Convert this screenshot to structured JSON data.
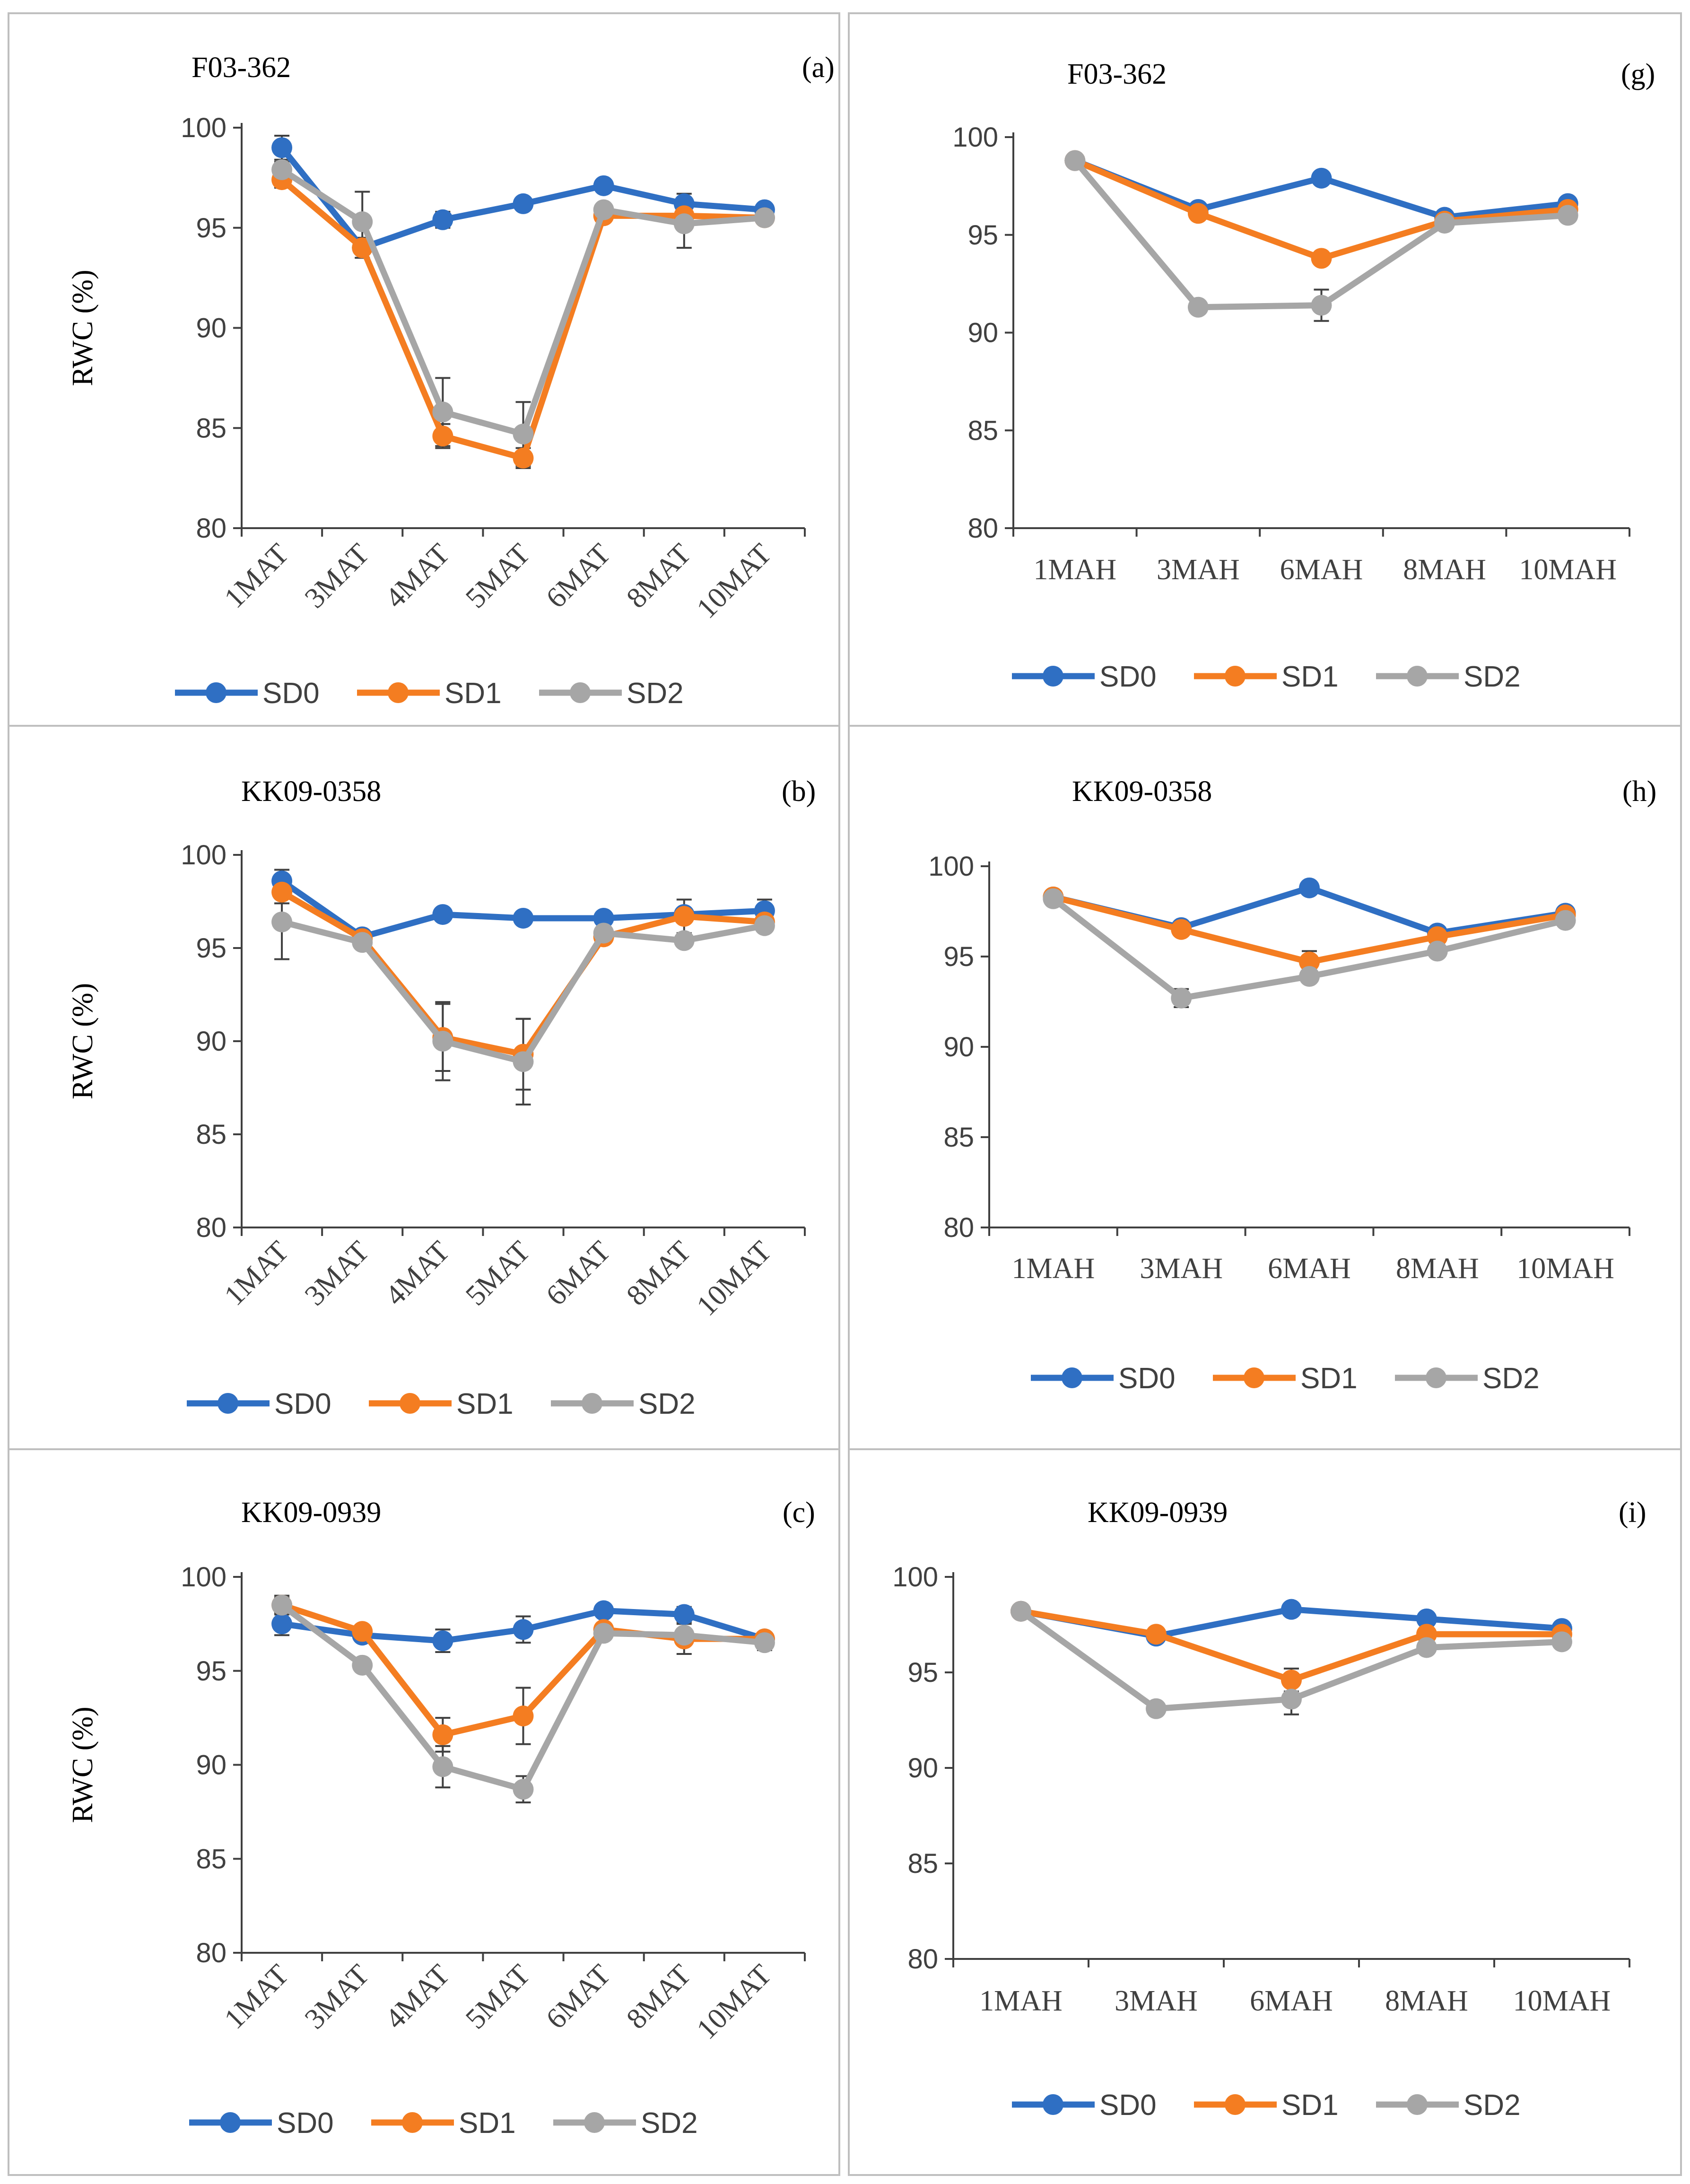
{
  "figure": {
    "ylabel": "RWC (%)",
    "series_colors": {
      "SD0": "#2F6FC3",
      "SD1": "#F47D21",
      "SD2": "#A6A6A6"
    },
    "error_bar_color": "#404040",
    "axis_color": "#404040"
  },
  "chart_data": [
    {
      "type": "line",
      "panel": "a",
      "label": "(a)",
      "title": "F03-362",
      "ylabel": "RWC (%)",
      "ylim": [
        80,
        100
      ],
      "yticks": [
        80,
        85,
        90,
        95,
        100
      ],
      "x_rotated": true,
      "categories": [
        "1MAT",
        "3MAT",
        "4MAT",
        "5MAT",
        "6MAT",
        "8MAT",
        "10MAT"
      ],
      "series": [
        {
          "name": "SD0",
          "values": [
            99.0,
            94.0,
            95.4,
            96.2,
            97.1,
            96.2,
            95.9
          ],
          "errors": [
            0.6,
            0.3,
            0.4,
            0.2,
            0.3,
            0.5,
            0.3
          ]
        },
        {
          "name": "SD1",
          "values": [
            97.4,
            94.0,
            84.6,
            83.5,
            95.6,
            95.6,
            95.5
          ],
          "errors": [
            0.4,
            0.5,
            0.6,
            0.5,
            0.3,
            0.5,
            0.3
          ]
        },
        {
          "name": "SD2",
          "values": [
            97.9,
            95.3,
            85.8,
            84.7,
            95.9,
            95.2,
            95.5
          ],
          "errors": [
            0.4,
            1.5,
            1.7,
            1.6,
            0.3,
            1.2,
            0.3
          ]
        }
      ],
      "legend": [
        "SD0",
        "SD1",
        "SD2"
      ]
    },
    {
      "type": "line",
      "panel": "g",
      "label": "(g)",
      "title": "F03-362",
      "ylabel": "",
      "ylim": [
        80,
        100
      ],
      "yticks": [
        80,
        85,
        90,
        95,
        100
      ],
      "x_rotated": false,
      "categories": [
        "1MAH",
        "3MAH",
        "6MAH",
        "8MAH",
        "10MAH"
      ],
      "series": [
        {
          "name": "SD0",
          "values": [
            98.8,
            96.3,
            97.9,
            95.9,
            96.6
          ],
          "errors": [
            0.2,
            0.2,
            0.2,
            0.2,
            0.3
          ]
        },
        {
          "name": "SD1",
          "values": [
            98.8,
            96.1,
            93.8,
            95.7,
            96.3
          ],
          "errors": [
            0.2,
            0.2,
            0.2,
            0.2,
            0.2
          ]
        },
        {
          "name": "SD2",
          "values": [
            98.8,
            91.3,
            91.4,
            95.6,
            96.0
          ],
          "errors": [
            0.2,
            0.3,
            0.8,
            0.2,
            0.3
          ]
        }
      ],
      "legend": [
        "SD0",
        "SD1",
        "SD2"
      ]
    },
    {
      "type": "line",
      "panel": "b",
      "label": "(b)",
      "title": "KK09-0358",
      "ylabel": "RWC (%)",
      "ylim": [
        80,
        100
      ],
      "yticks": [
        80,
        85,
        90,
        95,
        100
      ],
      "x_rotated": true,
      "categories": [
        "1MAT",
        "3MAT",
        "4MAT",
        "5MAT",
        "6MAT",
        "8MAT",
        "10MAT"
      ],
      "series": [
        {
          "name": "SD0",
          "values": [
            98.6,
            95.6,
            96.8,
            96.6,
            96.6,
            96.8,
            97.0
          ],
          "errors": [
            0.6,
            0.3,
            0.2,
            0.3,
            0.2,
            0.2,
            0.6
          ]
        },
        {
          "name": "SD1",
          "values": [
            98.0,
            95.5,
            90.2,
            89.3,
            95.6,
            96.7,
            96.4
          ],
          "errors": [
            0.6,
            0.3,
            1.8,
            1.9,
            0.3,
            0.9,
            0.4
          ]
        },
        {
          "name": "SD2",
          "values": [
            96.4,
            95.3,
            90.0,
            88.9,
            95.8,
            95.4,
            96.2
          ],
          "errors": [
            2.0,
            0.3,
            2.1,
            2.3,
            0.3,
            0.3,
            0.3
          ]
        }
      ],
      "legend": [
        "SD0",
        "SD1",
        "SD2"
      ]
    },
    {
      "type": "line",
      "panel": "h",
      "label": "(h)",
      "title": "KK09-0358",
      "ylabel": "",
      "ylim": [
        80,
        100
      ],
      "yticks": [
        80,
        85,
        90,
        95,
        100
      ],
      "x_rotated": false,
      "categories": [
        "1MAH",
        "3MAH",
        "6MAH",
        "8MAH",
        "10MAH"
      ],
      "series": [
        {
          "name": "SD0",
          "values": [
            98.3,
            96.6,
            98.8,
            96.3,
            97.4
          ],
          "errors": [
            0.2,
            0.2,
            0.2,
            0.2,
            0.2
          ]
        },
        {
          "name": "SD1",
          "values": [
            98.3,
            96.5,
            94.7,
            96.1,
            97.3
          ],
          "errors": [
            0.2,
            0.2,
            0.6,
            0.2,
            0.2
          ]
        },
        {
          "name": "SD2",
          "values": [
            98.2,
            92.7,
            93.9,
            95.3,
            97.0
          ],
          "errors": [
            0.2,
            0.5,
            0.3,
            0.3,
            0.3
          ]
        }
      ],
      "legend": [
        "SD0",
        "SD1",
        "SD2"
      ]
    },
    {
      "type": "line",
      "panel": "c",
      "label": "(c)",
      "title": "KK09-0939",
      "ylabel": "RWC (%)",
      "ylim": [
        80,
        100
      ],
      "yticks": [
        80,
        85,
        90,
        95,
        100
      ],
      "x_rotated": true,
      "categories": [
        "1MAT",
        "3MAT",
        "4MAT",
        "5MAT",
        "6MAT",
        "8MAT",
        "10MAT"
      ],
      "series": [
        {
          "name": "SD0",
          "values": [
            97.5,
            96.9,
            96.6,
            97.2,
            98.2,
            98.0,
            96.7
          ],
          "errors": [
            0.6,
            0.3,
            0.6,
            0.7,
            0.3,
            0.4,
            0.3
          ]
        },
        {
          "name": "SD1",
          "values": [
            98.5,
            97.1,
            91.6,
            92.6,
            97.2,
            96.7,
            96.7
          ],
          "errors": [
            0.4,
            0.3,
            0.9,
            1.5,
            0.3,
            0.8,
            0.3
          ]
        },
        {
          "name": "SD2",
          "values": [
            98.5,
            95.3,
            89.9,
            88.7,
            97.0,
            96.9,
            96.5
          ],
          "errors": [
            0.5,
            0.3,
            1.1,
            0.7,
            0.3,
            0.3,
            0.4
          ]
        }
      ],
      "legend": [
        "SD0",
        "SD1",
        "SD2"
      ]
    },
    {
      "type": "line",
      "panel": "i",
      "label": "(i)",
      "title": "KK09-0939",
      "ylabel": "",
      "ylim": [
        80,
        100
      ],
      "yticks": [
        80,
        85,
        90,
        95,
        100
      ],
      "x_rotated": false,
      "categories": [
        "1MAH",
        "3MAH",
        "6MAH",
        "8MAH",
        "10MAH"
      ],
      "series": [
        {
          "name": "SD0",
          "values": [
            98.2,
            96.9,
            98.3,
            97.8,
            97.3
          ],
          "errors": [
            0.2,
            0.3,
            0.2,
            0.3,
            0.2
          ]
        },
        {
          "name": "SD1",
          "values": [
            98.2,
            97.0,
            94.6,
            97.0,
            97.0
          ],
          "errors": [
            0.2,
            0.2,
            0.6,
            0.3,
            0.2
          ]
        },
        {
          "name": "SD2",
          "values": [
            98.2,
            93.1,
            93.6,
            96.3,
            96.6
          ],
          "errors": [
            0.2,
            0.2,
            0.8,
            0.3,
            0.3
          ]
        }
      ],
      "legend": [
        "SD0",
        "SD1",
        "SD2"
      ]
    }
  ]
}
